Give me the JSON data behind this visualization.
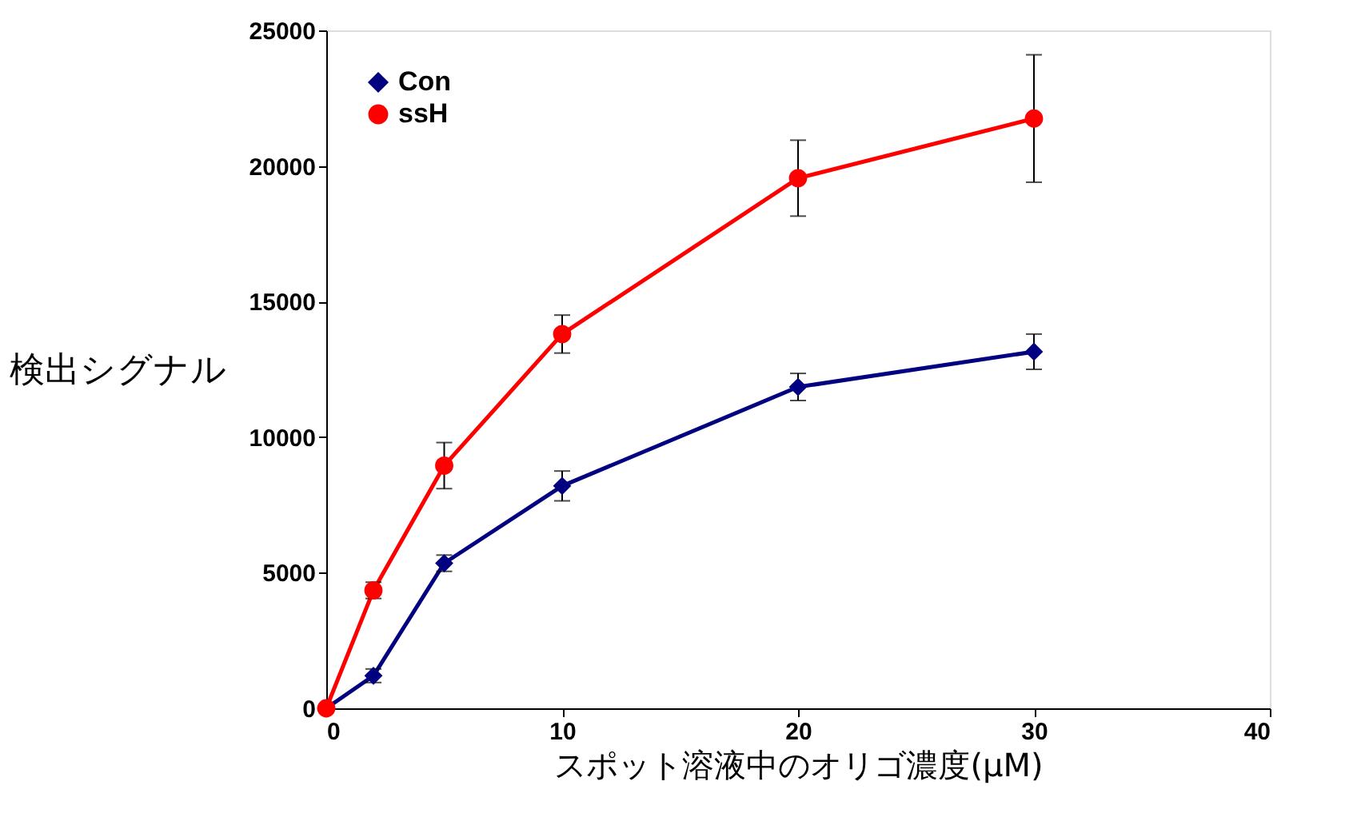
{
  "chart_data": {
    "type": "line",
    "xlabel": "スポット溶液中のオリゴ濃度(μM)",
    "ylabel": "検出シグナル",
    "x": [
      0,
      2,
      5,
      10,
      20,
      30
    ],
    "xlim": [
      0,
      40
    ],
    "xticks": [
      0,
      10,
      20,
      30,
      40
    ],
    "ylim": [
      0,
      25000
    ],
    "yticks": [
      0,
      5000,
      10000,
      15000,
      20000,
      25000
    ],
    "grid": false,
    "legend": "top left",
    "line_style": "solid",
    "series": [
      {
        "name": "Con",
        "color": "#000080",
        "marker": "diamond",
        "values": [
          0,
          1200,
          5350,
          8200,
          11850,
          13150
        ],
        "errors": [
          null,
          250,
          300,
          550,
          500,
          650
        ]
      },
      {
        "name": "ssH",
        "color": "#ff0000",
        "marker": "circle",
        "values": [
          0,
          4350,
          8950,
          13800,
          19550,
          21750
        ],
        "errors": [
          null,
          300,
          850,
          700,
          1400,
          2350
        ]
      }
    ]
  }
}
